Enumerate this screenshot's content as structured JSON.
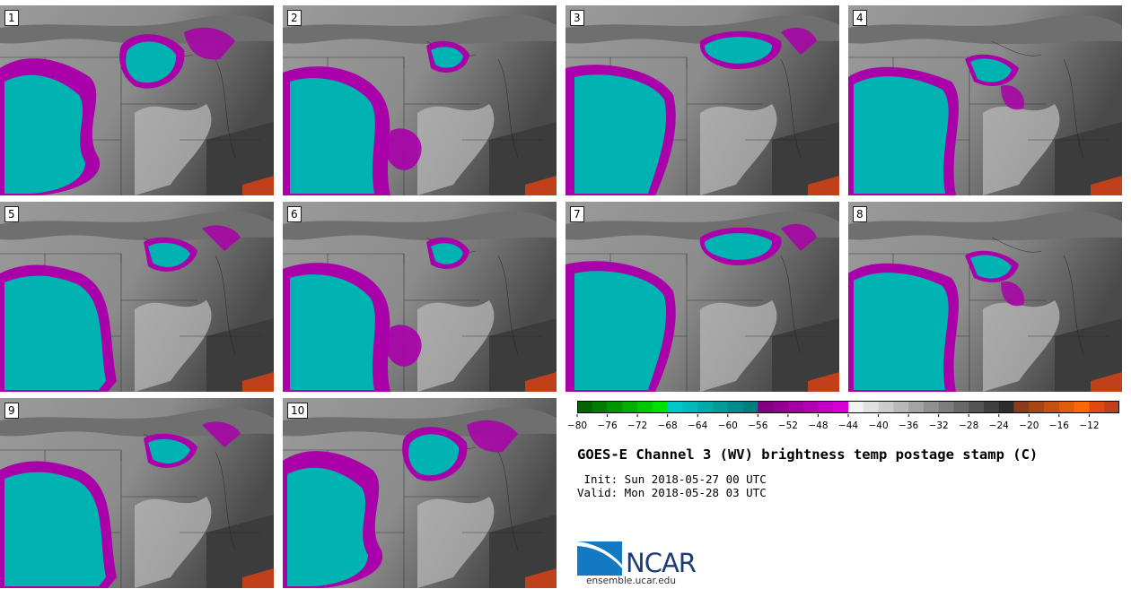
{
  "panels": [
    {
      "label": "1"
    },
    {
      "label": "2"
    },
    {
      "label": "3"
    },
    {
      "label": "4"
    },
    {
      "label": "5"
    },
    {
      "label": "6"
    },
    {
      "label": "7"
    },
    {
      "label": "8"
    },
    {
      "label": "9"
    },
    {
      "label": "10"
    }
  ],
  "colorbar": {
    "colors": [
      "#006400",
      "#007d00",
      "#009600",
      "#00af00",
      "#00c800",
      "#00e100",
      "#00c8c8",
      "#00b9b9",
      "#00aaaa",
      "#009b9b",
      "#008c8c",
      "#007d7d",
      "#800080",
      "#910091",
      "#a200a2",
      "#b300b3",
      "#c400c4",
      "#d500d5",
      "#f2f2f2",
      "#e0e0e0",
      "#cccccc",
      "#b8b8b8",
      "#a4a4a4",
      "#909090",
      "#7c7c7c",
      "#686868",
      "#545454",
      "#404040",
      "#2c2c2c",
      "#8b3a1c",
      "#a84516",
      "#c55010",
      "#e25b0a",
      "#ff6604",
      "#e04a10",
      "#c0401a"
    ],
    "tick_labels": [
      "−80",
      "−76",
      "−72",
      "−68",
      "−64",
      "−60",
      "−56",
      "−52",
      "−48",
      "−44",
      "−40",
      "−36",
      "−32",
      "−28",
      "−24",
      "−20",
      "−16",
      "−12"
    ]
  },
  "title": "GOES-E Channel 3 (WV) brightness temp postage stamp (C)",
  "init": " Init: Sun 2018-05-27 00 UTC",
  "valid": "Valid: Mon 2018-05-28 03 UTC",
  "logo_text": "NCAR",
  "site": "ensemble.ucar.edu",
  "icon": "ncar-logo-icon"
}
